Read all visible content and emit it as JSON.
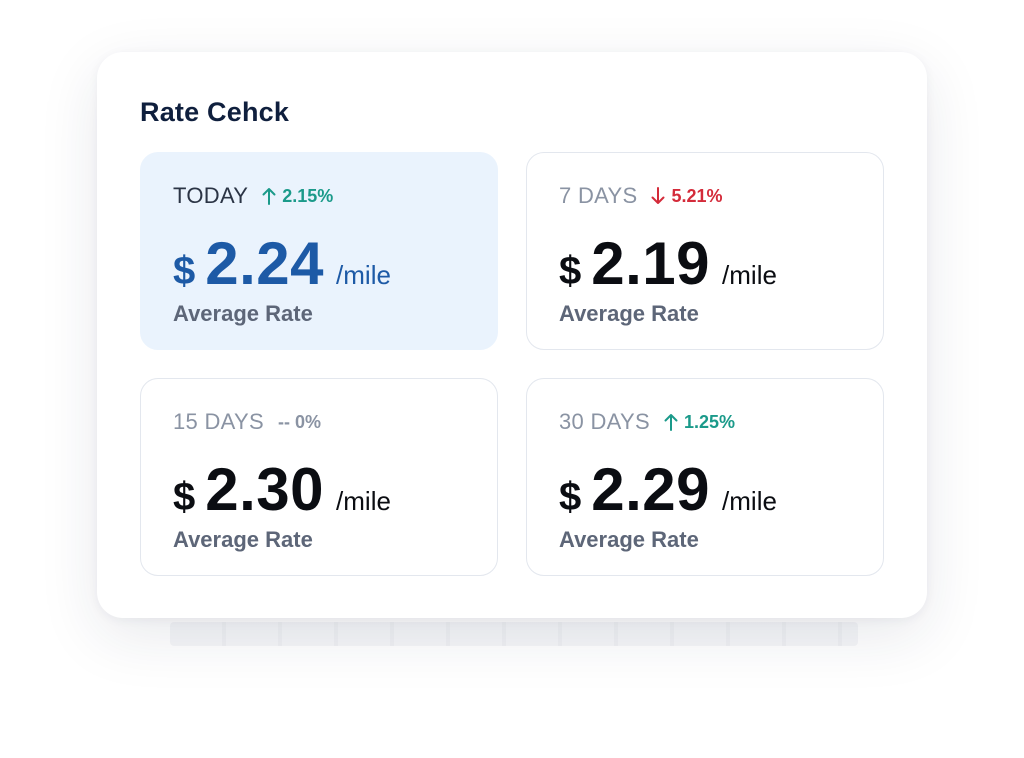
{
  "widget": {
    "title": "Rate Cehck"
  },
  "rates": [
    {
      "period": "TODAY",
      "change": "2.15%",
      "trend": "up",
      "currency": "$",
      "amount": "2.24",
      "unit": "/mile",
      "caption": "Average Rate",
      "icon": "arrow-up-icon"
    },
    {
      "period": "7 DAYS",
      "change": "5.21%",
      "trend": "down",
      "currency": "$",
      "amount": "2.19",
      "unit": "/mile",
      "caption": "Average Rate",
      "icon": "arrow-down-icon"
    },
    {
      "period": "15 DAYS",
      "change": "-- 0%",
      "trend": "flat",
      "currency": "$",
      "amount": "2.30",
      "unit": "/mile",
      "caption": "Average Rate"
    },
    {
      "period": "30 DAYS",
      "change": "1.25%",
      "trend": "up",
      "currency": "$",
      "amount": "2.29",
      "unit": "/mile",
      "caption": "Average Rate",
      "icon": "arrow-up-icon"
    }
  ],
  "colors": {
    "up": "#1b9a8a",
    "down": "#d42b3a",
    "active_price": "#1d5aa6",
    "active_bg": "#eaf3fd"
  }
}
